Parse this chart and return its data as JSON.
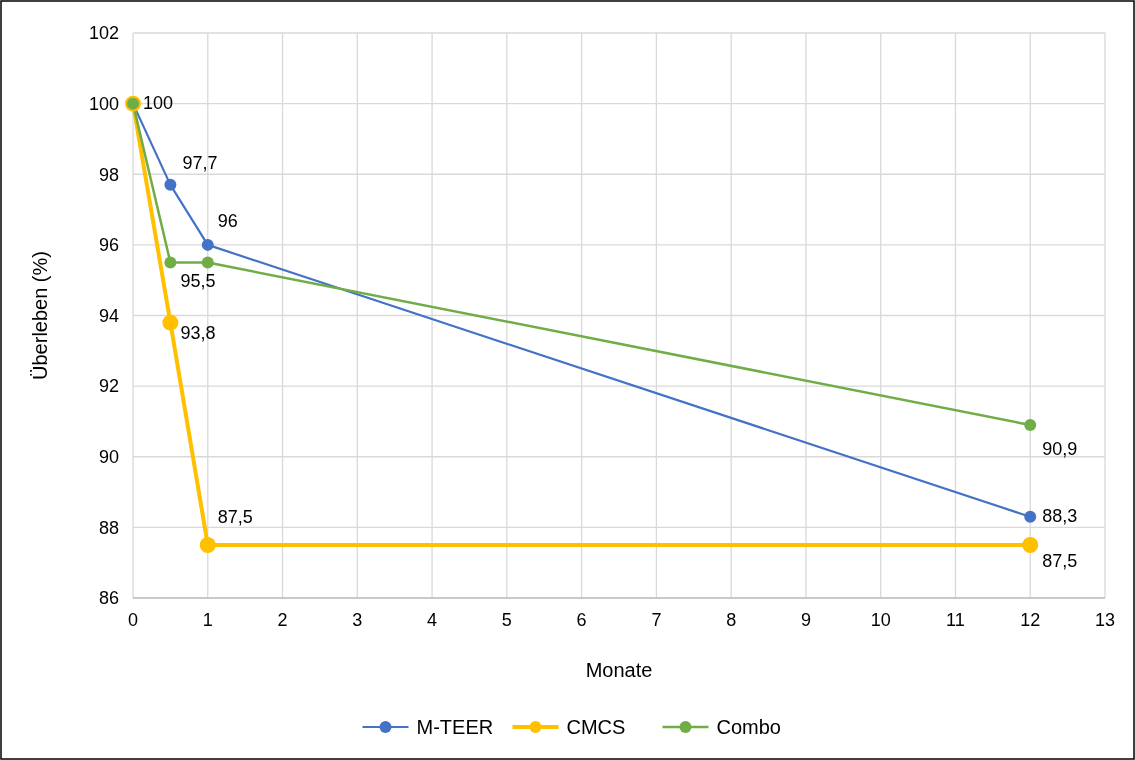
{
  "chart_data": {
    "type": "line",
    "xlabel": "Monate",
    "ylabel": "Überleben (%)",
    "x": [
      0,
      0.5,
      1,
      12
    ],
    "series": [
      {
        "name": "M-TEER",
        "color": "#4472c4",
        "values": [
          100,
          97.7,
          96,
          88.3
        ],
        "value_labels": [
          "100",
          "97,7",
          "96",
          "88,3"
        ]
      },
      {
        "name": "CMCS",
        "color": "#ffc000",
        "values": [
          100,
          93.8,
          87.5,
          87.5
        ],
        "value_labels": [
          null,
          "93,8",
          "87,5",
          "87,5"
        ]
      },
      {
        "name": "Combo",
        "color": "#70ad47",
        "values": [
          100,
          95.5,
          95.5,
          90.9
        ],
        "value_labels": [
          null,
          "95,5",
          null,
          "90,9"
        ]
      }
    ],
    "xlim": [
      0,
      13
    ],
    "xticks": [
      0,
      1,
      2,
      3,
      4,
      5,
      6,
      7,
      8,
      9,
      10,
      11,
      12,
      13
    ],
    "ylim": [
      86,
      102
    ],
    "yticks": [
      86,
      88,
      90,
      92,
      94,
      96,
      98,
      100,
      102
    ],
    "grid": true,
    "legend": "bottom",
    "marker": "circle",
    "line_style": "solid"
  }
}
